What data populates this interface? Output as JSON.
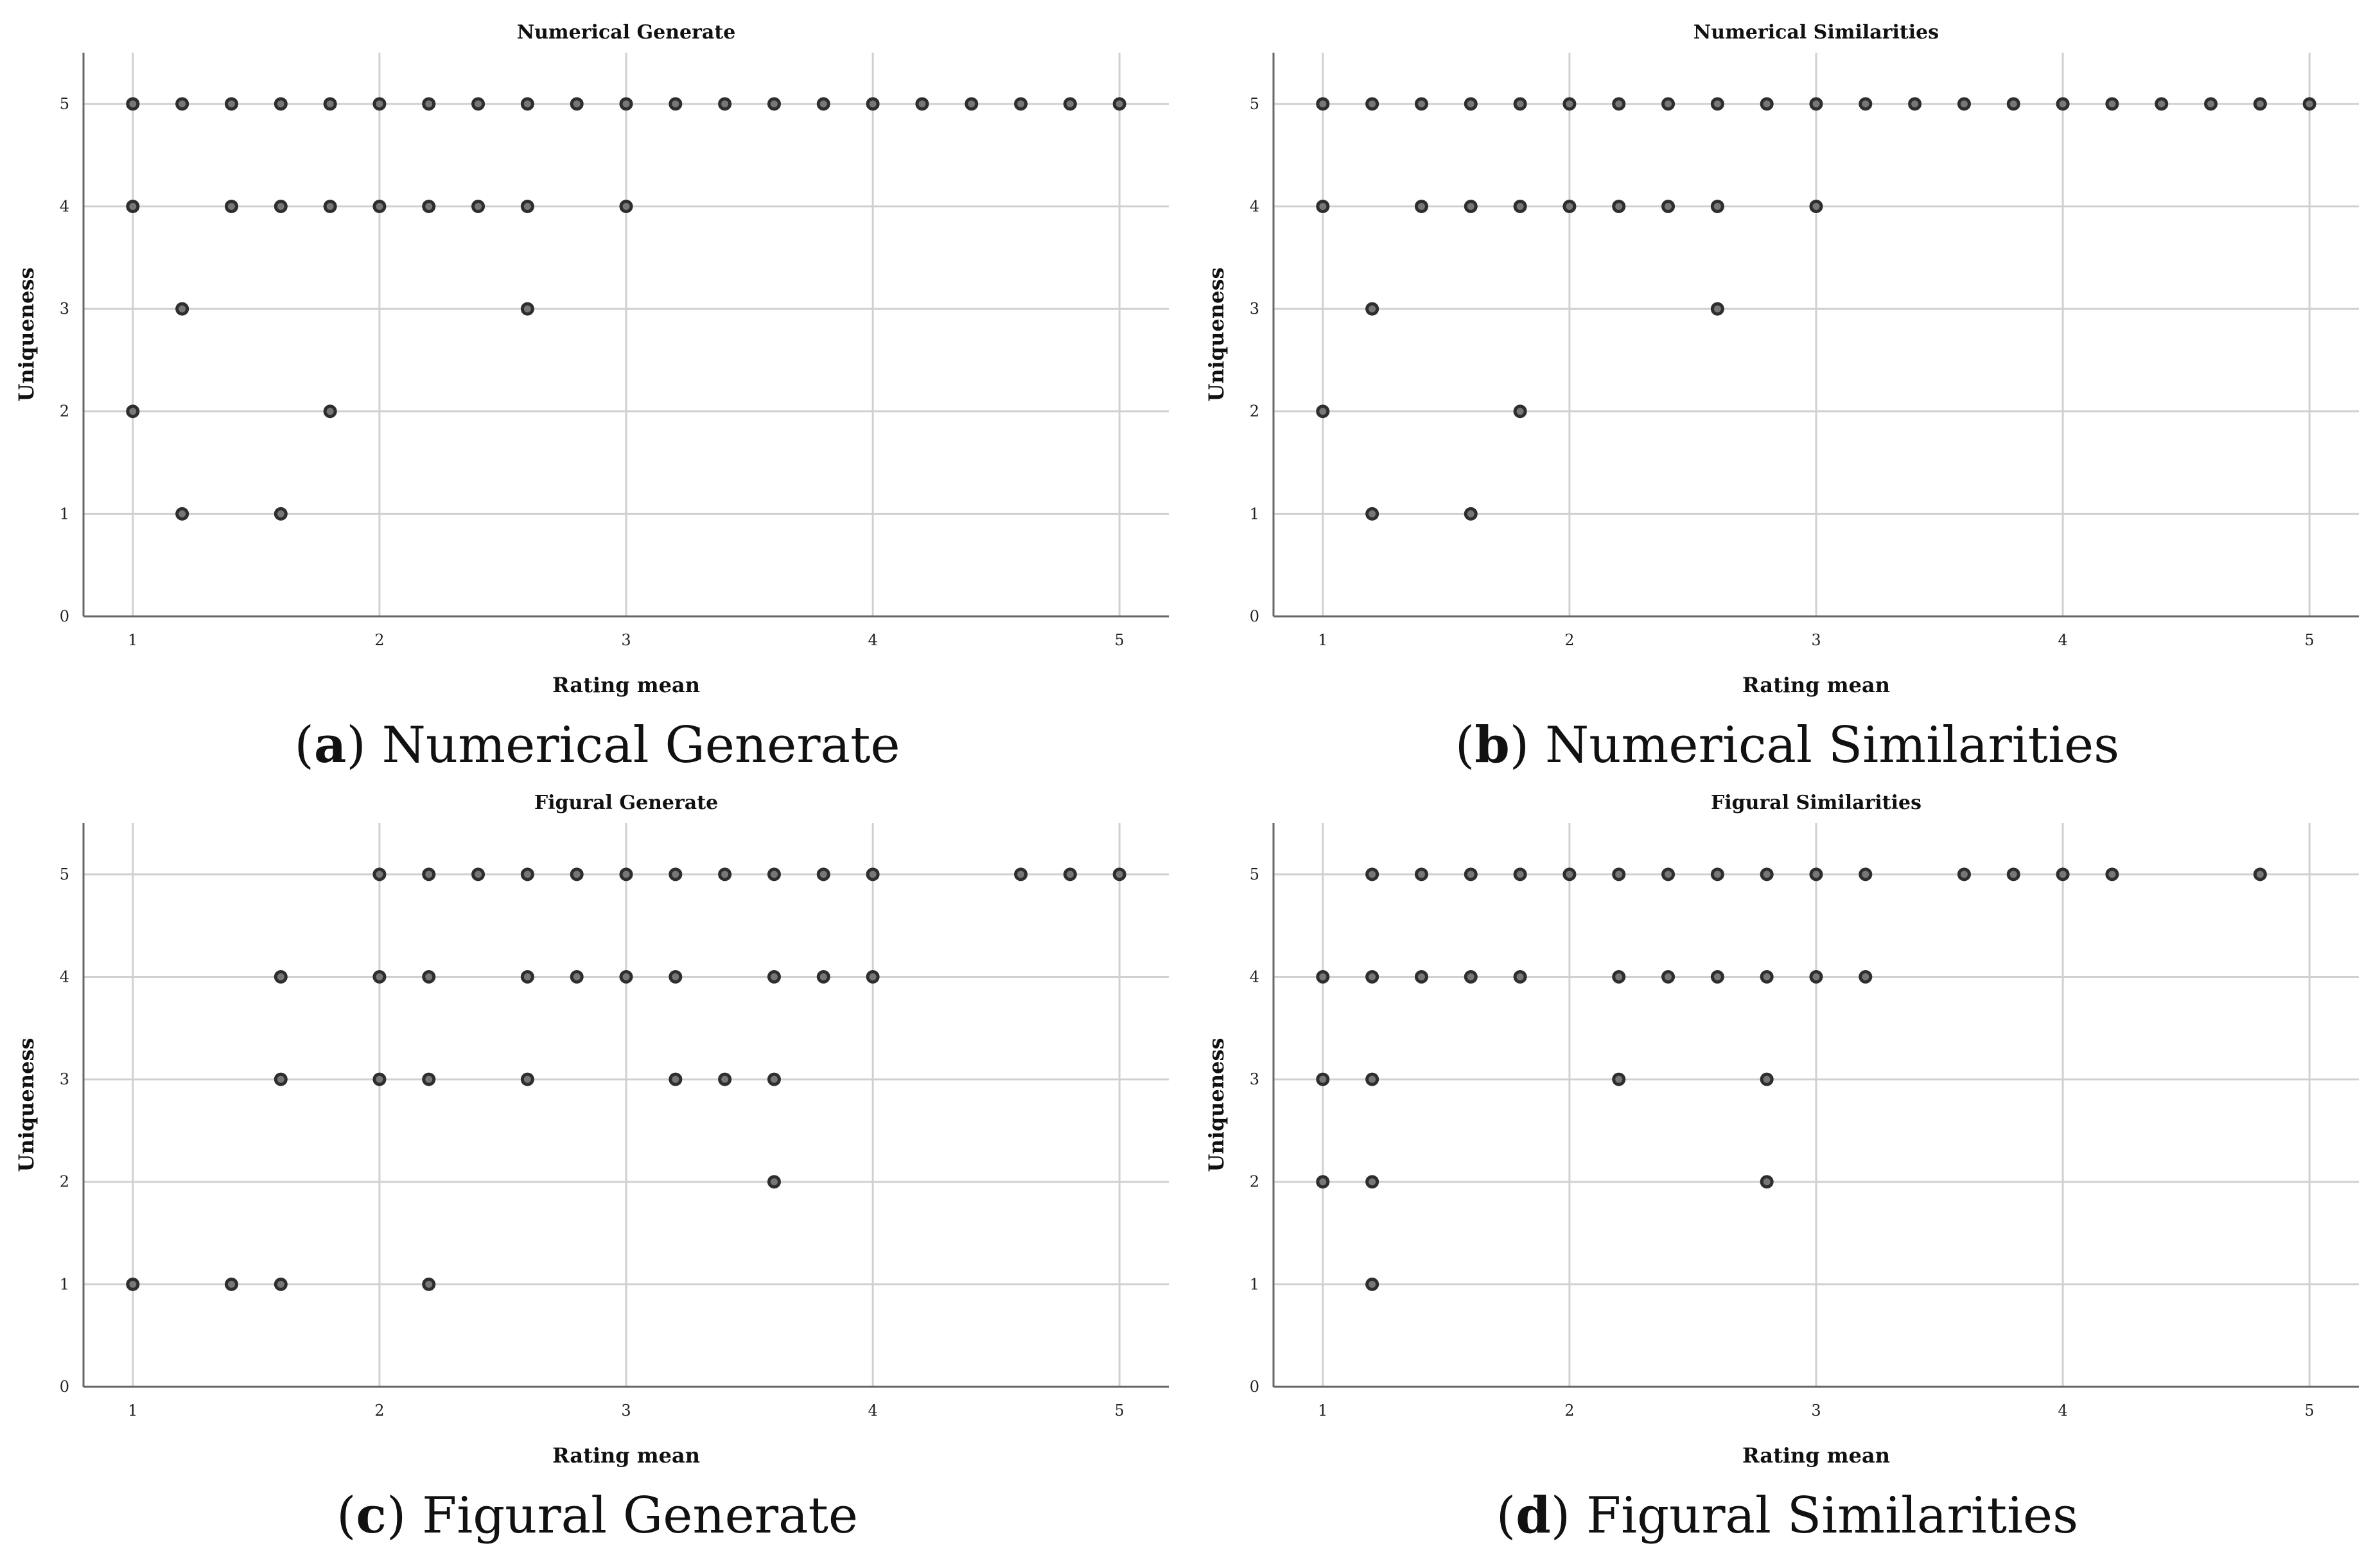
{
  "captions": [
    {
      "letter": "a",
      "text": "Numerical Generate"
    },
    {
      "letter": "b",
      "text": "Numerical Similarities"
    },
    {
      "letter": "c",
      "text": "Figural Generate"
    },
    {
      "letter": "d",
      "text": "Figural Similarities"
    }
  ],
  "chart_data": [
    {
      "type": "scatter",
      "title": "Numerical Generate",
      "xlabel": "Rating mean",
      "ylabel": "Uniqueness",
      "xlim": [
        0.8,
        5.2
      ],
      "ylim": [
        0,
        5.5
      ],
      "xticks": [
        "1",
        "2",
        "3",
        "4",
        "5"
      ],
      "yticks": [
        "0",
        "1",
        "2",
        "3",
        "4",
        "5"
      ],
      "grid": true,
      "points": [
        [
          1,
          5
        ],
        [
          1.2,
          5
        ],
        [
          1.4,
          5
        ],
        [
          1.6,
          5
        ],
        [
          1.8,
          5
        ],
        [
          2,
          5
        ],
        [
          2.2,
          5
        ],
        [
          2.4,
          5
        ],
        [
          2.6,
          5
        ],
        [
          2.8,
          5
        ],
        [
          3,
          5
        ],
        [
          3.2,
          5
        ],
        [
          3.4,
          5
        ],
        [
          3.6,
          5
        ],
        [
          3.8,
          5
        ],
        [
          4,
          5
        ],
        [
          4.2,
          5
        ],
        [
          4.4,
          5
        ],
        [
          4.6,
          5
        ],
        [
          4.8,
          5
        ],
        [
          5,
          5
        ],
        [
          1,
          4
        ],
        [
          1.4,
          4
        ],
        [
          1.6,
          4
        ],
        [
          1.8,
          4
        ],
        [
          2,
          4
        ],
        [
          2.2,
          4
        ],
        [
          2.4,
          4
        ],
        [
          2.6,
          4
        ],
        [
          3,
          4
        ],
        [
          1.2,
          3
        ],
        [
          2.6,
          3
        ],
        [
          1,
          2
        ],
        [
          1.8,
          2
        ],
        [
          1.2,
          1
        ],
        [
          1.6,
          1
        ]
      ]
    },
    {
      "type": "scatter",
      "title": "Numerical Similarities",
      "xlabel": "Rating mean",
      "ylabel": "Uniqueness",
      "xlim": [
        0.8,
        5.2
      ],
      "ylim": [
        0,
        5.5
      ],
      "xticks": [
        "1",
        "2",
        "3",
        "4",
        "5"
      ],
      "yticks": [
        "0",
        "1",
        "2",
        "3",
        "4",
        "5"
      ],
      "grid": true,
      "points": [
        [
          1,
          5
        ],
        [
          1.2,
          5
        ],
        [
          1.4,
          5
        ],
        [
          1.6,
          5
        ],
        [
          1.8,
          5
        ],
        [
          2,
          5
        ],
        [
          2.2,
          5
        ],
        [
          2.4,
          5
        ],
        [
          2.6,
          5
        ],
        [
          2.8,
          5
        ],
        [
          3,
          5
        ],
        [
          3.2,
          5
        ],
        [
          3.4,
          5
        ],
        [
          3.6,
          5
        ],
        [
          3.8,
          5
        ],
        [
          4,
          5
        ],
        [
          4.2,
          5
        ],
        [
          4.4,
          5
        ],
        [
          4.6,
          5
        ],
        [
          4.8,
          5
        ],
        [
          5,
          5
        ],
        [
          1,
          4
        ],
        [
          1.4,
          4
        ],
        [
          1.6,
          4
        ],
        [
          1.8,
          4
        ],
        [
          2,
          4
        ],
        [
          2.2,
          4
        ],
        [
          2.4,
          4
        ],
        [
          2.6,
          4
        ],
        [
          3,
          4
        ],
        [
          1.2,
          3
        ],
        [
          2.6,
          3
        ],
        [
          1,
          2
        ],
        [
          1.8,
          2
        ],
        [
          1.2,
          1
        ],
        [
          1.6,
          1
        ]
      ]
    },
    {
      "type": "scatter",
      "title": "Figural Generate",
      "xlabel": "Rating mean",
      "ylabel": "Uniqueness",
      "xlim": [
        0.8,
        5.2
      ],
      "ylim": [
        0,
        5.5
      ],
      "xticks": [
        "1",
        "2",
        "3",
        "4",
        "5"
      ],
      "yticks": [
        "0",
        "1",
        "2",
        "3",
        "4",
        "5"
      ],
      "grid": true,
      "points": [
        [
          2,
          5
        ],
        [
          2.2,
          5
        ],
        [
          2.4,
          5
        ],
        [
          2.6,
          5
        ],
        [
          2.8,
          5
        ],
        [
          3,
          5
        ],
        [
          3.2,
          5
        ],
        [
          3.4,
          5
        ],
        [
          3.6,
          5
        ],
        [
          3.8,
          5
        ],
        [
          4,
          5
        ],
        [
          4.6,
          5
        ],
        [
          4.8,
          5
        ],
        [
          5,
          5
        ],
        [
          1.6,
          4
        ],
        [
          2,
          4
        ],
        [
          2.2,
          4
        ],
        [
          2.6,
          4
        ],
        [
          2.8,
          4
        ],
        [
          3,
          4
        ],
        [
          3.2,
          4
        ],
        [
          3.6,
          4
        ],
        [
          3.8,
          4
        ],
        [
          4,
          4
        ],
        [
          1.6,
          3
        ],
        [
          2,
          3
        ],
        [
          2.2,
          3
        ],
        [
          2.6,
          3
        ],
        [
          3.2,
          3
        ],
        [
          3.4,
          3
        ],
        [
          3.6,
          3
        ],
        [
          3.6,
          2
        ],
        [
          1,
          1
        ],
        [
          1.4,
          1
        ],
        [
          1.6,
          1
        ],
        [
          2.2,
          1
        ]
      ]
    },
    {
      "type": "scatter",
      "title": "Figural Similarities",
      "xlabel": "Rating mean",
      "ylabel": "Uniqueness",
      "xlim": [
        0.8,
        5.2
      ],
      "ylim": [
        0,
        5.5
      ],
      "xticks": [
        "1",
        "2",
        "3",
        "4",
        "5"
      ],
      "yticks": [
        "0",
        "1",
        "2",
        "3",
        "4",
        "5"
      ],
      "grid": true,
      "points": [
        [
          1.2,
          5
        ],
        [
          1.4,
          5
        ],
        [
          1.6,
          5
        ],
        [
          1.8,
          5
        ],
        [
          2,
          5
        ],
        [
          2.2,
          5
        ],
        [
          2.4,
          5
        ],
        [
          2.6,
          5
        ],
        [
          2.8,
          5
        ],
        [
          3,
          5
        ],
        [
          3.2,
          5
        ],
        [
          3.6,
          5
        ],
        [
          3.8,
          5
        ],
        [
          4,
          5
        ],
        [
          4.2,
          5
        ],
        [
          4.8,
          5
        ],
        [
          1,
          4
        ],
        [
          1.2,
          4
        ],
        [
          1.4,
          4
        ],
        [
          1.6,
          4
        ],
        [
          1.8,
          4
        ],
        [
          2.2,
          4
        ],
        [
          2.4,
          4
        ],
        [
          2.6,
          4
        ],
        [
          2.8,
          4
        ],
        [
          3,
          4
        ],
        [
          3.2,
          4
        ],
        [
          1,
          3
        ],
        [
          1.2,
          3
        ],
        [
          2.2,
          3
        ],
        [
          2.8,
          3
        ],
        [
          1,
          2
        ],
        [
          1.2,
          2
        ],
        [
          2.8,
          2
        ],
        [
          1.2,
          1
        ]
      ]
    }
  ]
}
